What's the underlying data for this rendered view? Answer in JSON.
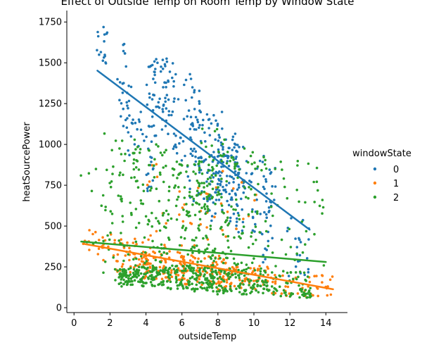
{
  "chart_data": {
    "type": "scatter",
    "title": "Effect of Outside Temp on Room Temp by Window State",
    "xlabel": "outsideTemp",
    "ylabel": "heatSourcePower",
    "xlim": [
      -0.4,
      15.2
    ],
    "ylim": [
      -30,
      1820
    ],
    "x_ticks": [
      0,
      2,
      4,
      6,
      8,
      10,
      12,
      14
    ],
    "x_tick_labels": [
      "0",
      "2",
      "4",
      "6",
      "8",
      "10",
      "12",
      "14"
    ],
    "y_ticks": [
      0,
      250,
      500,
      750,
      1000,
      1250,
      1500,
      1750
    ],
    "y_tick_labels": [
      "0",
      "250",
      "500",
      "750",
      "1000",
      "1250",
      "1500",
      "1750"
    ],
    "grid": false,
    "legend": {
      "title": "windowState",
      "placement": "right"
    },
    "series": [
      {
        "name": "0",
        "color": "#1f77b4",
        "trend": [
          [
            1.3,
            1452
          ],
          [
            13.1,
            478
          ]
        ],
        "clusters": [
          {
            "x": [
              1.2,
              1.9
            ],
            "y": [
              1450,
              1720
            ],
            "n": 16
          },
          {
            "x": [
              2.4,
              3.2
            ],
            "y": [
              1100,
              1640
            ],
            "n": 26
          },
          {
            "x": [
              3.0,
              3.9
            ],
            "y": [
              850,
              1200
            ],
            "n": 18
          },
          {
            "x": [
              4.0,
              5.6
            ],
            "y": [
              1050,
              1530
            ],
            "n": 70
          },
          {
            "x": [
              4.0,
              4.5
            ],
            "y": [
              700,
              1050
            ],
            "n": 16
          },
          {
            "x": [
              5.5,
              7.0
            ],
            "y": [
              900,
              1440
            ],
            "n": 45
          },
          {
            "x": [
              6.3,
              8.4
            ],
            "y": [
              650,
              1220
            ],
            "n": 80
          },
          {
            "x": [
              7.2,
              9.2
            ],
            "y": [
              520,
              1000
            ],
            "n": 75
          },
          {
            "x": [
              8.0,
              9.6
            ],
            "y": [
              700,
              1090
            ],
            "n": 40
          },
          {
            "x": [
              9.0,
              11.0
            ],
            "y": [
              450,
              950
            ],
            "n": 45
          },
          {
            "x": [
              10.5,
              11.2
            ],
            "y": [
              250,
              880
            ],
            "n": 22
          },
          {
            "x": [
              11.8,
              13.1
            ],
            "y": [
              180,
              560
            ],
            "n": 22
          }
        ]
      },
      {
        "name": "1",
        "color": "#ff7f0e",
        "trend": [
          [
            0.6,
            390
          ],
          [
            14.4,
            113
          ]
        ],
        "clusters": [
          {
            "x": [
              0.5,
              2.2
            ],
            "y": [
              280,
              480
            ],
            "n": 20
          },
          {
            "x": [
              2.2,
              4.2
            ],
            "y": [
              200,
              430
            ],
            "n": 55
          },
          {
            "x": [
              3.8,
              6.2
            ],
            "y": [
              170,
              350
            ],
            "n": 70
          },
          {
            "x": [
              5.8,
              8.5
            ],
            "y": [
              140,
              320
            ],
            "n": 80
          },
          {
            "x": [
              8.0,
              10.8
            ],
            "y": [
              110,
              270
            ],
            "n": 70
          },
          {
            "x": [
              10.5,
              14.5
            ],
            "y": [
              70,
              200
            ],
            "n": 45
          },
          {
            "x": [
              4.0,
              5.3
            ],
            "y": [
              300,
              900
            ],
            "n": 14
          },
          {
            "x": [
              5.8,
              7.5
            ],
            "y": [
              380,
              760
            ],
            "n": 18
          },
          {
            "x": [
              7.5,
              10.2
            ],
            "y": [
              420,
              860
            ],
            "n": 14
          }
        ]
      },
      {
        "name": "2",
        "color": "#2ca02c",
        "trend": [
          [
            0.4,
            405
          ],
          [
            14.0,
            280
          ]
        ],
        "clusters": [
          {
            "x": [
              0.2,
              1.6
            ],
            "y": [
              380,
              880
            ],
            "n": 8
          },
          {
            "x": [
              1.6,
              3.5
            ],
            "y": [
              130,
              1080
            ],
            "n": 60
          },
          {
            "x": [
              2.5,
              5.0
            ],
            "y": [
              130,
              250
            ],
            "n": 140
          },
          {
            "x": [
              3.3,
              5.2
            ],
            "y": [
              250,
              1000
            ],
            "n": 80
          },
          {
            "x": [
              5.0,
              7.8
            ],
            "y": [
              100,
              260
            ],
            "n": 150
          },
          {
            "x": [
              5.2,
              7.8
            ],
            "y": [
              250,
              900
            ],
            "n": 110
          },
          {
            "x": [
              6.8,
              8.6
            ],
            "y": [
              300,
              1100
            ],
            "n": 60
          },
          {
            "x": [
              7.8,
              10.8
            ],
            "y": [
              80,
              240
            ],
            "n": 120
          },
          {
            "x": [
              8.0,
              10.8
            ],
            "y": [
              240,
              980
            ],
            "n": 90
          },
          {
            "x": [
              10.8,
              13.0
            ],
            "y": [
              60,
              220
            ],
            "n": 45
          },
          {
            "x": [
              10.8,
              13.9
            ],
            "y": [
              220,
              900
            ],
            "n": 40
          },
          {
            "x": [
              12.5,
              13.2
            ],
            "y": [
              60,
              120
            ],
            "n": 20
          }
        ]
      }
    ]
  }
}
